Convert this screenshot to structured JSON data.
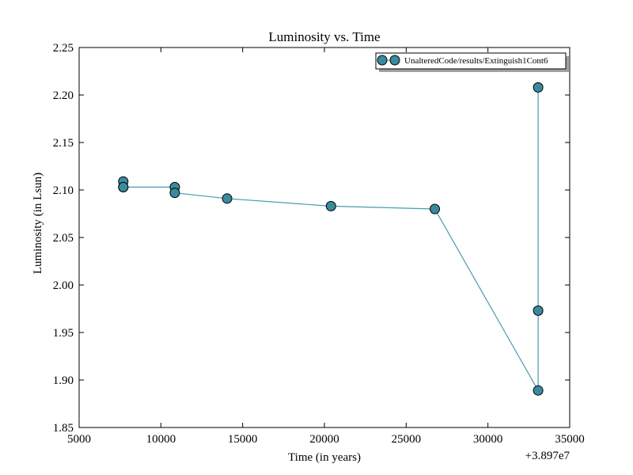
{
  "chart_data": {
    "type": "line",
    "title": "Luminosity vs. Time",
    "xlabel": "Time (in years)",
    "ylabel": "Luminosity (in Lsun)",
    "x_offset_label": "+3.897e7",
    "xlim": [
      5000,
      35000
    ],
    "ylim": [
      1.85,
      2.25
    ],
    "xticks": [
      5000,
      10000,
      15000,
      20000,
      25000,
      30000,
      35000
    ],
    "xtick_labels": [
      "5000",
      "10000",
      "15000",
      "20000",
      "25000",
      "30000",
      "35000"
    ],
    "yticks": [
      1.85,
      1.9,
      1.95,
      2.0,
      2.05,
      2.1,
      2.15,
      2.2,
      2.25
    ],
    "ytick_labels": [
      "1.85",
      "1.90",
      "1.95",
      "2.00",
      "2.05",
      "2.10",
      "2.15",
      "2.20",
      "2.25"
    ],
    "grid": false,
    "legend_position": "top-right",
    "series": [
      {
        "name": "UnalteredCode/results/Extinguish1Cont6",
        "color": "#3a8a9c",
        "line_color": "#4a9ab0",
        "x": [
          7700,
          7700,
          7700,
          10850,
          10850,
          14050,
          20400,
          26750,
          33070,
          33070,
          33070
        ],
        "y": [
          2.109,
          2.103,
          2.103,
          2.103,
          2.097,
          2.091,
          2.083,
          2.08,
          1.889,
          1.973,
          2.208
        ]
      }
    ]
  }
}
